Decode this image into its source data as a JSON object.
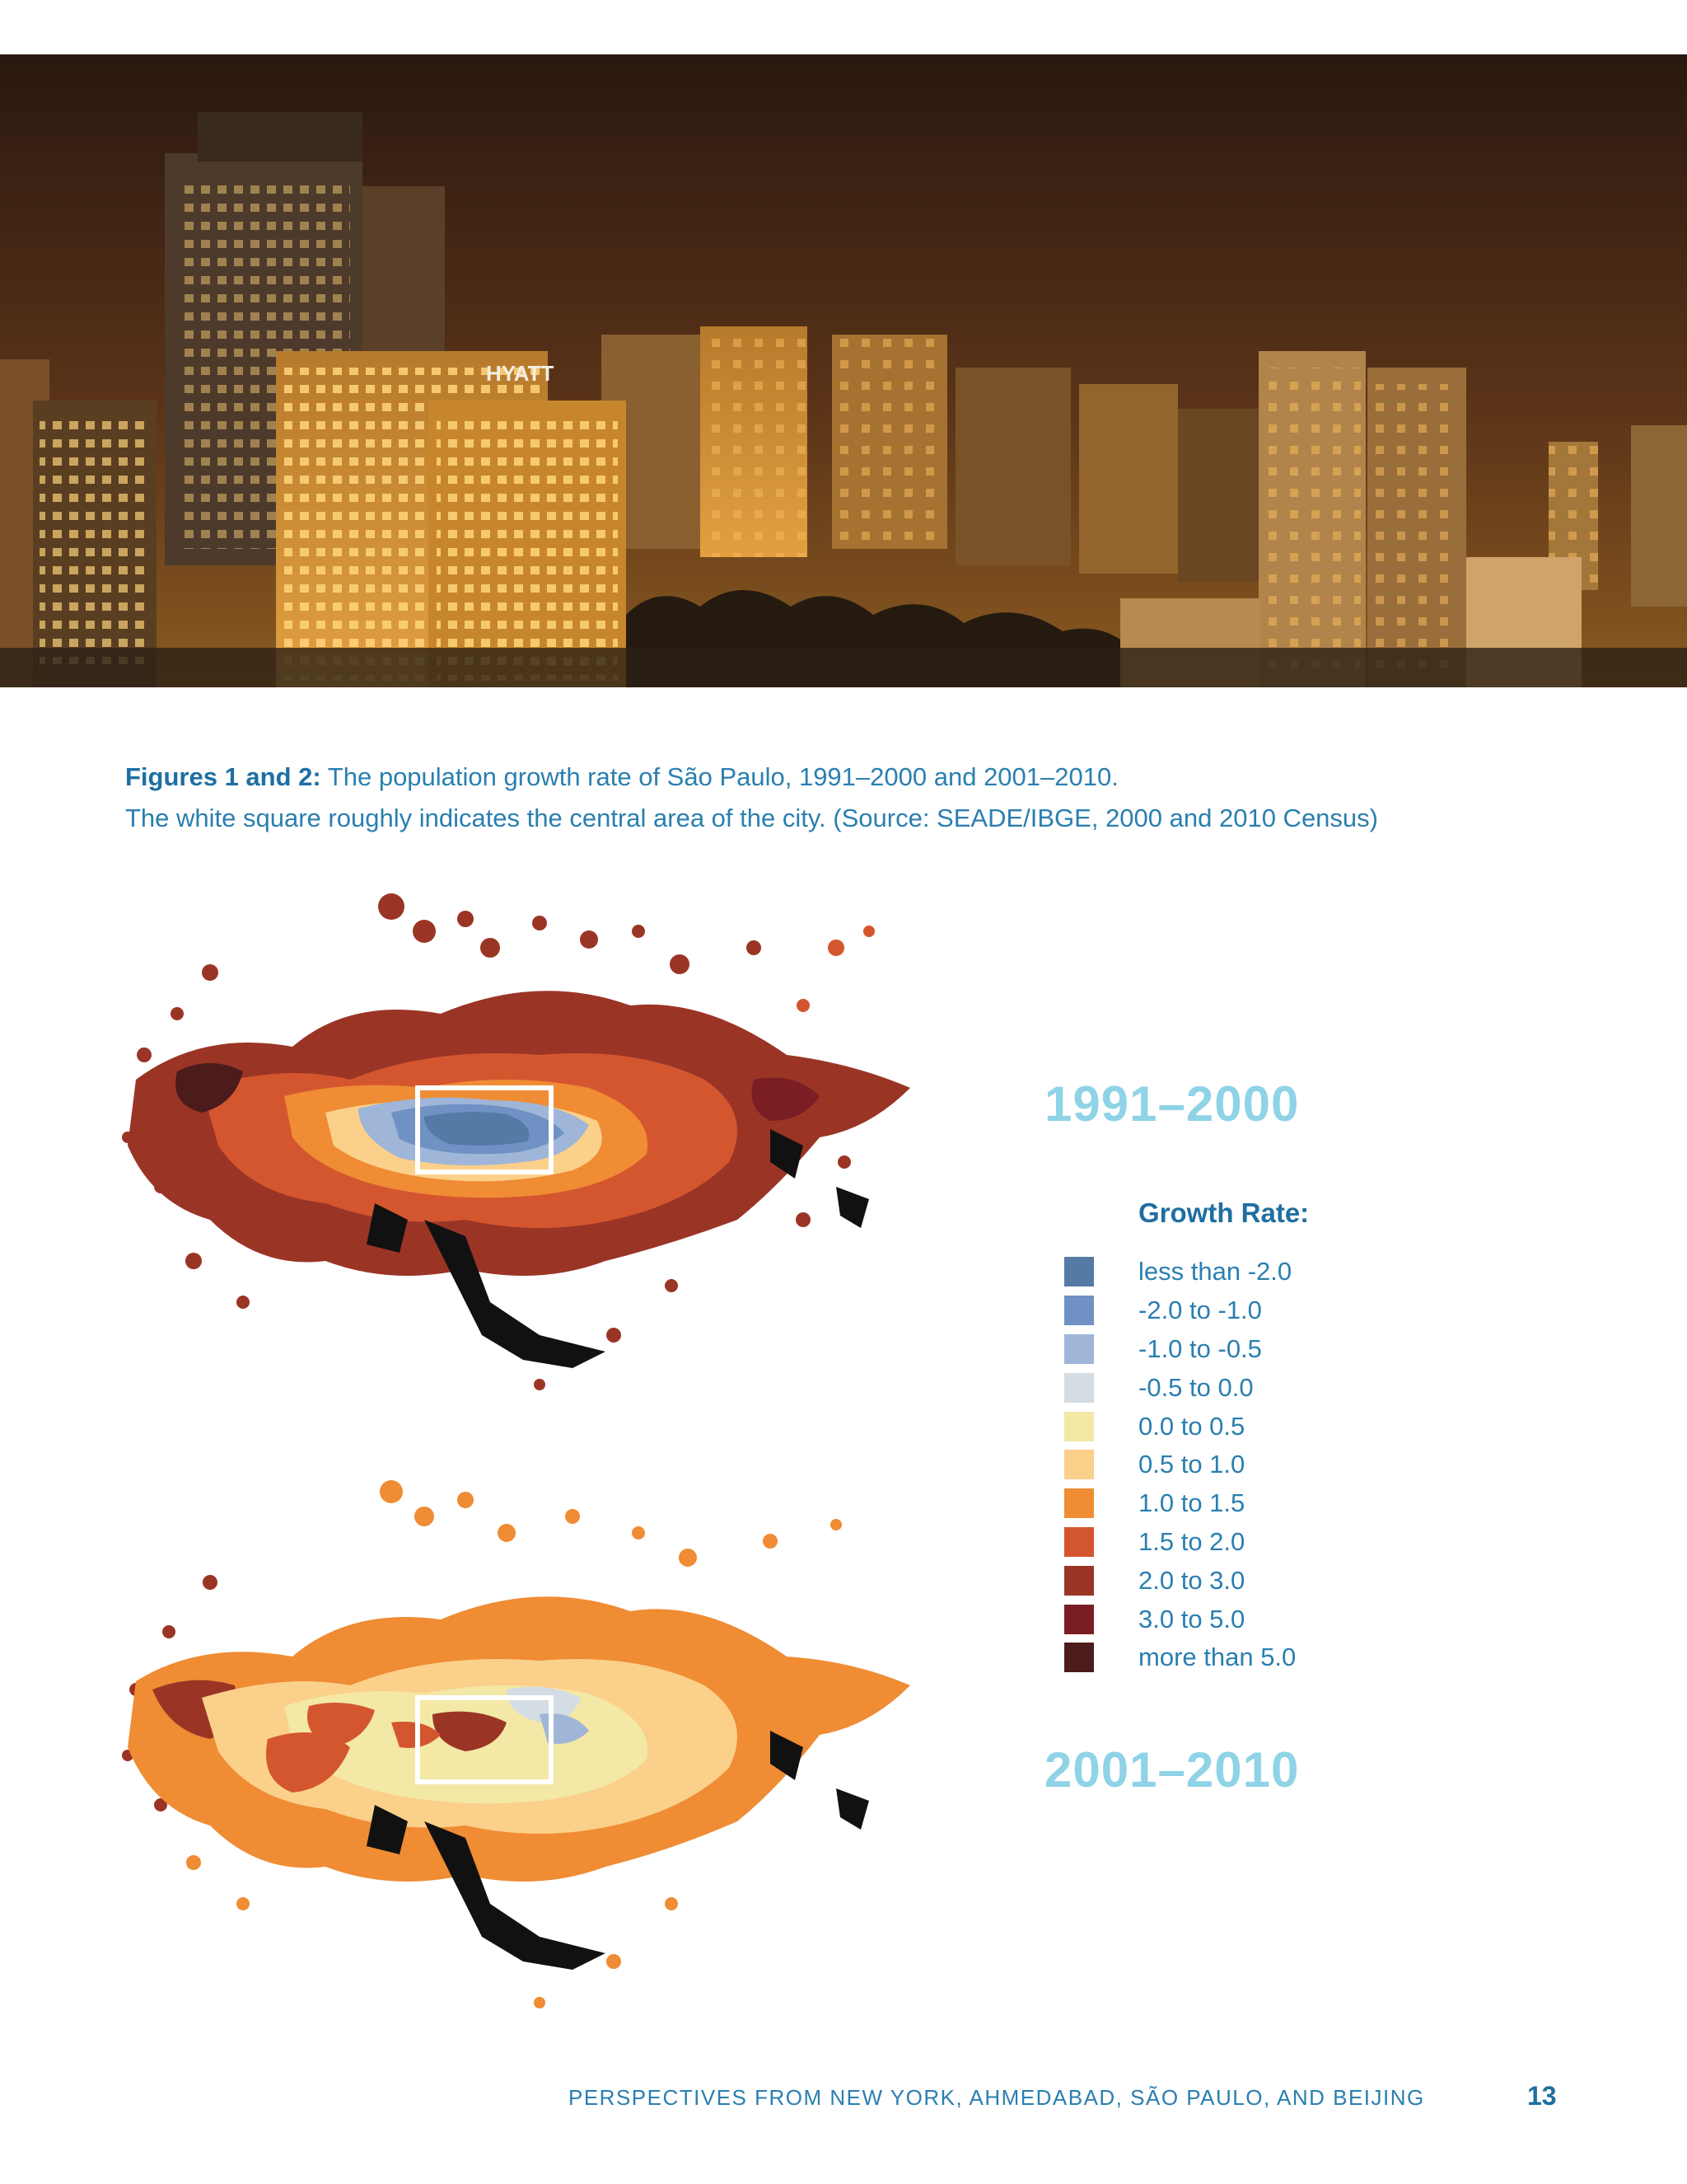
{
  "caption": {
    "lead": "Figures 1 and 2:",
    "line1": "The population growth rate of São Paulo, 1991–2000 and 2001–2010.",
    "line2": "The white square roughly indicates the central area of the city. (Source: SEADE/IBGE, 2000 and 2010 Census)"
  },
  "photo": {
    "sign_text": "HYATT"
  },
  "maps": [
    {
      "period": "1991–2000"
    },
    {
      "period": "2001–2010"
    }
  ],
  "legend": {
    "title": "Growth Rate:",
    "items": [
      {
        "label": "less than -2.0",
        "color": "#567aa6"
      },
      {
        "label": "-2.0 to -1.0",
        "color": "#6f91c4"
      },
      {
        "label": "-1.0 to -0.5",
        "color": "#9fb6d8"
      },
      {
        "label": "-0.5 to 0.0",
        "color": "#d3dde3"
      },
      {
        "label": "0.0 to 0.5",
        "color": "#f3e8a6"
      },
      {
        "label": "0.5 to 1.0",
        "color": "#fbd08a"
      },
      {
        "label": "1.0 to 1.5",
        "color": "#ef8c34"
      },
      {
        "label": "1.5 to 2.0",
        "color": "#d4562f"
      },
      {
        "label": "2.0 to 3.0",
        "color": "#9a3526"
      },
      {
        "label": "3.0 to 5.0",
        "color": "#7a1e24"
      },
      {
        "label": "more than 5.0",
        "color": "#4c1c1c"
      }
    ]
  },
  "footer": {
    "running_title": "PERSPECTIVES FROM NEW YORK, AHMEDABAD, SÃO PAULO, AND BEIJING",
    "page_number": "13"
  }
}
